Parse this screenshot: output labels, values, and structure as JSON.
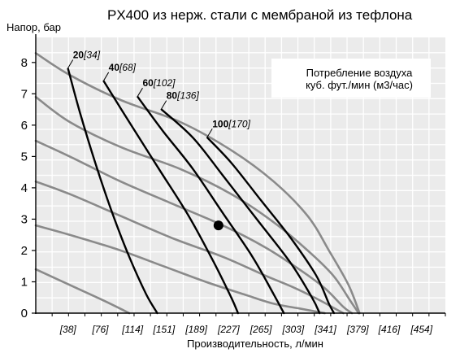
{
  "chart_data": {
    "type": "line",
    "title": "PX400 из нерж. стали с мембраной из тефлона",
    "ylabel": "Напор, бар",
    "xlabel": "Производительность, л/мин",
    "note_line1": "Потребление воздуха",
    "note_line2": "куб. фут./мин (м3/час)",
    "xlim": [
      0,
      482
    ],
    "ylim": [
      0,
      8.8
    ],
    "x_ticks": [
      38,
      76,
      114,
      151,
      189,
      227,
      265,
      303,
      341,
      379,
      416,
      454
    ],
    "x_tick_labels": [
      "[38]",
      "[76]",
      "[114]",
      "[151]",
      "[189]",
      "[227]",
      "[265]",
      "[303]",
      "[341]",
      "[379]",
      "[416]",
      "[454]"
    ],
    "y_ticks": [
      0,
      1,
      2,
      3,
      4,
      5,
      6,
      7,
      8
    ],
    "y_tick_labels": [
      "0",
      "1",
      "2",
      "3",
      "4",
      "5",
      "6",
      "7",
      "8"
    ],
    "grid": true,
    "pressure_series": [
      {
        "x": [
          0,
          40,
          100,
          170,
          230,
          280,
          320,
          345,
          368,
          381
        ],
        "y": [
          8.3,
          7.6,
          6.8,
          6.1,
          5.2,
          4.2,
          3.1,
          2.0,
          0.9,
          0
        ]
      },
      {
        "x": [
          0,
          40,
          100,
          170,
          230,
          280,
          320,
          350,
          370,
          380
        ],
        "y": [
          6.9,
          6.1,
          5.3,
          4.6,
          3.8,
          2.9,
          2.0,
          1.2,
          0.4,
          0
        ]
      },
      {
        "x": [
          0,
          40,
          100,
          160,
          220,
          270,
          310,
          340,
          362,
          372
        ],
        "y": [
          5.5,
          5.0,
          4.2,
          3.5,
          2.8,
          2.1,
          1.4,
          0.8,
          0.2,
          0
        ]
      },
      {
        "x": [
          0,
          40,
          100,
          160,
          220,
          270,
          305,
          335,
          355,
          362
        ],
        "y": [
          4.2,
          3.8,
          3.1,
          2.4,
          1.8,
          1.2,
          0.8,
          0.4,
          0.1,
          0
        ]
      },
      {
        "x": [
          0,
          40,
          100,
          150,
          200,
          245,
          280,
          310,
          330,
          340
        ],
        "y": [
          2.8,
          2.5,
          2.0,
          1.5,
          1.0,
          0.6,
          0.3,
          0.15,
          0.05,
          0
        ]
      },
      {
        "x": [
          0,
          40,
          80,
          110
        ],
        "y": [
          1.4,
          0.9,
          0.4,
          0
        ]
      }
    ],
    "air_series": [
      {
        "name": "20",
        "name_m3": "[34]",
        "x": [
          38,
          52,
          70,
          90,
          110,
          130,
          143
        ],
        "y": [
          7.8,
          6.4,
          4.8,
          3.2,
          1.8,
          0.6,
          0
        ]
      },
      {
        "name": "40",
        "name_m3": "[68]",
        "x": [
          80,
          110,
          145,
          180,
          210,
          230,
          238
        ],
        "y": [
          7.4,
          6.1,
          4.6,
          3.1,
          1.6,
          0.5,
          0
        ]
      },
      {
        "name": "60",
        "name_m3": "[102]",
        "x": [
          120,
          150,
          185,
          220,
          255,
          280,
          292
        ],
        "y": [
          6.9,
          5.8,
          4.6,
          3.2,
          1.8,
          0.6,
          0
        ]
      },
      {
        "name": "80",
        "name_m3": "[136]",
        "x": [
          148,
          185,
          220,
          260,
          300,
          325,
          334
        ],
        "y": [
          6.5,
          5.6,
          4.4,
          3.0,
          1.6,
          0.5,
          0
        ]
      },
      {
        "name": "100",
        "name_m3": "[170]",
        "x": [
          202,
          230,
          265,
          300,
          330,
          345,
          351
        ],
        "y": [
          5.6,
          4.8,
          3.6,
          2.4,
          1.2,
          0.3,
          0
        ]
      }
    ],
    "point": {
      "x": 215,
      "y": 2.8
    }
  }
}
